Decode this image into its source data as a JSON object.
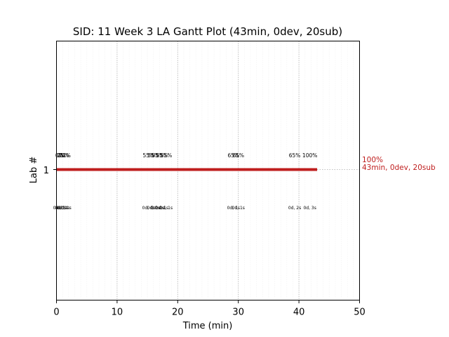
{
  "chart_data": {
    "type": "gantt",
    "title": "SID: 11 Week 3 LA Gantt Plot (43min, 0dev, 20sub)",
    "xlabel": "Time (min)",
    "ylabel": "Lab #",
    "xlim": [
      0,
      50
    ],
    "ylim": [
      0,
      2
    ],
    "xticks": [
      "0",
      "10",
      "20",
      "30",
      "40",
      "50"
    ],
    "minor_grid_step": 1,
    "major_grid_step": 10,
    "grid": true,
    "bar": {
      "lab": "1",
      "start": 0,
      "end": 43,
      "color": "#bf1e1e"
    },
    "end_annotation": {
      "percent": "100%",
      "summary": "43min, 0dev, 20sub",
      "color": "#bf1e1e"
    },
    "submissions": [
      {
        "x": 0.5,
        "percent": "0%",
        "detail": "0d, 0s"
      },
      {
        "x": 0.8,
        "percent": "0%",
        "detail": "0d, 0s"
      },
      {
        "x": 1.1,
        "percent": "21%",
        "detail": "0d, 1s"
      },
      {
        "x": 1.4,
        "percent": "21%",
        "detail": "0d, 1s"
      },
      {
        "x": 15.2,
        "percent": "55%",
        "detail": "0d, 0s"
      },
      {
        "x": 16.0,
        "percent": "55%",
        "detail": "0d, 0s"
      },
      {
        "x": 16.7,
        "percent": "55%",
        "detail": "0d, 0s"
      },
      {
        "x": 17.4,
        "percent": "55%",
        "detail": "0d, 1s"
      },
      {
        "x": 18.1,
        "percent": "55%",
        "detail": "0d, 1s"
      },
      {
        "x": 29.2,
        "percent": "65%",
        "detail": "0d, 1s"
      },
      {
        "x": 30.0,
        "percent": "65%",
        "detail": "0d, 1s"
      },
      {
        "x": 39.3,
        "percent": "65%",
        "detail": "0d, 2s"
      },
      {
        "x": 41.8,
        "percent": "100%",
        "detail": "0d, 3s"
      }
    ]
  }
}
